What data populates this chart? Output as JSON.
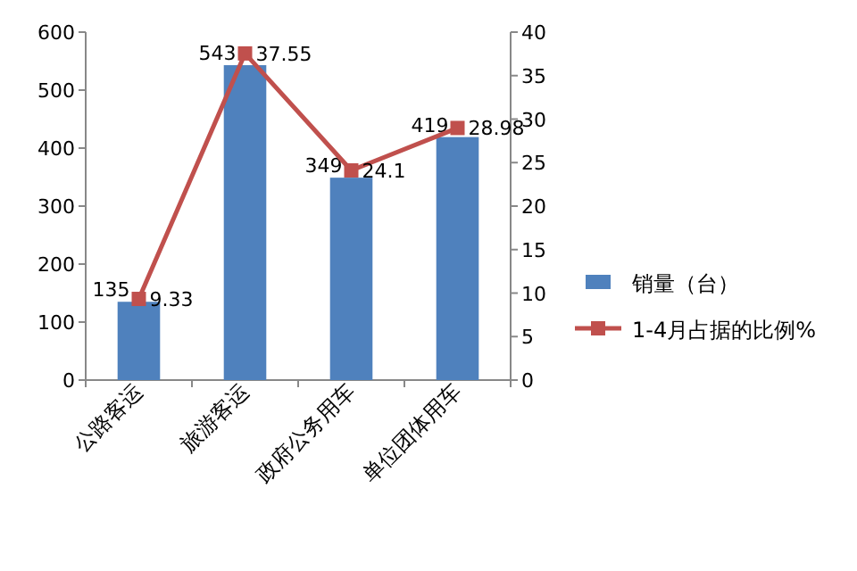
{
  "chart_data": {
    "type": "bar",
    "categories": [
      "公路客运",
      "旅游客运",
      "政府公务用车",
      "单位团体用车"
    ],
    "series": [
      {
        "name": "销量（台）",
        "color": "#4f81bd",
        "values": [
          135,
          543,
          349,
          419
        ]
      },
      {
        "name": "1-4月占据的比例%",
        "type": "line",
        "axis": "y2",
        "color": "#c0504d",
        "marker": "square",
        "values": [
          9.33,
          37.55,
          24.1,
          28.98
        ]
      }
    ],
    "ylim": [
      0,
      600
    ],
    "yticks": [
      0,
      100,
      200,
      300,
      400,
      500,
      600
    ],
    "y2lim": [
      0,
      40
    ],
    "y2ticks": [
      0,
      5,
      10,
      15,
      20,
      25,
      30,
      35,
      40
    ],
    "data_labels": true,
    "grid": false,
    "legend": "right"
  }
}
